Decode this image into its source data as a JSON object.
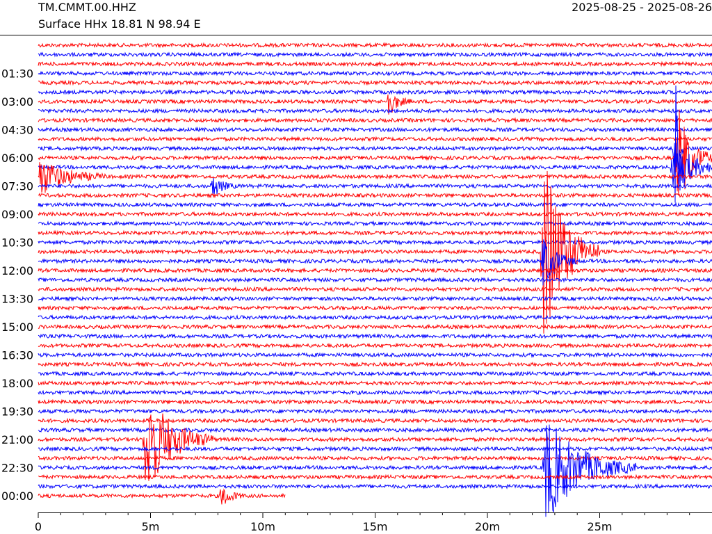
{
  "header": {
    "station": "TM.CMMT.00.HHZ",
    "location": "Surface HHx  18.81 N 98.94 E",
    "date_range": "2025-08-25 - 2025-08-26"
  },
  "colors": {
    "even_trace": "#ff0000",
    "odd_trace": "#0000ff",
    "axis": "#000000"
  },
  "chart_data": {
    "type": "line",
    "subtype": "helicorder",
    "trace_count": 49,
    "minutes_per_line": 30,
    "xlim": [
      0,
      30
    ],
    "x_ticks": [
      {
        "value": 0,
        "label": "0"
      },
      {
        "value": 5,
        "label": "5m"
      },
      {
        "value": 10,
        "label": "10m"
      },
      {
        "value": 15,
        "label": "15m"
      },
      {
        "value": 20,
        "label": "20m"
      },
      {
        "value": 25,
        "label": "25m"
      }
    ],
    "y_ticks": [
      {
        "line": 3,
        "label": "01:30"
      },
      {
        "line": 6,
        "label": "03:00"
      },
      {
        "line": 9,
        "label": "04:30"
      },
      {
        "line": 12,
        "label": "06:00"
      },
      {
        "line": 15,
        "label": "07:30"
      },
      {
        "line": 18,
        "label": "09:00"
      },
      {
        "line": 21,
        "label": "10:30"
      },
      {
        "line": 24,
        "label": "12:00"
      },
      {
        "line": 27,
        "label": "13:30"
      },
      {
        "line": 30,
        "label": "15:00"
      },
      {
        "line": 33,
        "label": "16:30"
      },
      {
        "line": 36,
        "label": "18:00"
      },
      {
        "line": 39,
        "label": "19:30"
      },
      {
        "line": 42,
        "label": "21:00"
      },
      {
        "line": 45,
        "label": "22:30"
      },
      {
        "line": 48,
        "label": "00:00"
      }
    ],
    "last_trace_end_minute": 11,
    "events": [
      {
        "line": 6,
        "minute": 15.6,
        "amplitude": 1.6,
        "duration": 1.0
      },
      {
        "line": 11,
        "minute": 28.4,
        "amplitude": 8,
        "duration": 0.3
      },
      {
        "line": 12,
        "minute": 28.5,
        "amplitude": 6,
        "duration": 1.5
      },
      {
        "line": 13,
        "minute": 28.3,
        "amplitude": 3.5,
        "duration": 2.0
      },
      {
        "line": 14,
        "minute": 0,
        "amplitude": 2.3,
        "duration": 3.0
      },
      {
        "line": 15,
        "minute": 7.8,
        "amplitude": 1.2,
        "duration": 1.0
      },
      {
        "line": 22,
        "minute": 22.5,
        "amplitude": 11,
        "duration": 2.5
      },
      {
        "line": 23,
        "minute": 22.5,
        "amplitude": 3,
        "duration": 1.5
      },
      {
        "line": 42,
        "minute": 4.8,
        "amplitude": 6,
        "duration": 3.0
      },
      {
        "line": 45,
        "minute": 22.6,
        "amplitude": 6,
        "duration": 4.0
      },
      {
        "line": 48,
        "minute": 8.2,
        "amplitude": 1.2,
        "duration": 1.0
      }
    ]
  }
}
